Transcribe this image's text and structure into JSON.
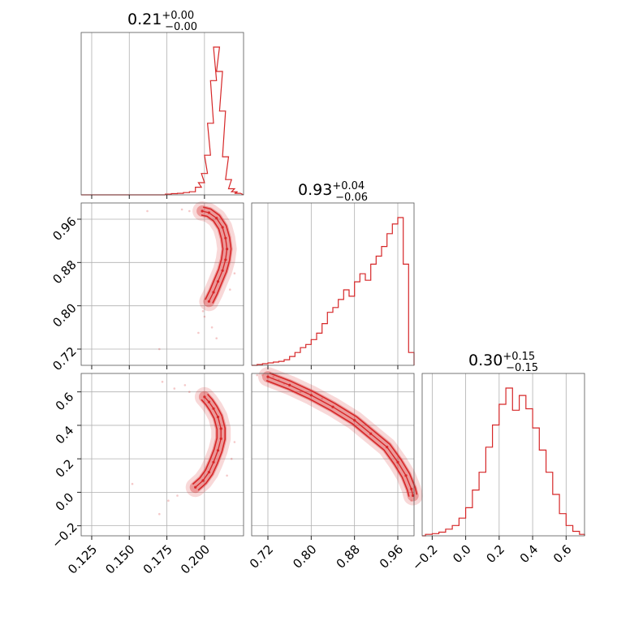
{
  "colors": {
    "accent": "#d62728",
    "grid": "#b0b0b0",
    "frame": "#555555"
  },
  "chart_data": {
    "type": "corner",
    "parameters": [
      {
        "title": {
          "value": "0.21",
          "upper": "+0.00",
          "lower": "−0.00"
        },
        "range": [
          0.118,
          0.226
        ]
      },
      {
        "title": {
          "value": "0.93",
          "upper": "+0.04",
          "lower": "−0.06"
        },
        "range": [
          0.69,
          0.99
        ]
      },
      {
        "title": {
          "value": "0.30",
          "upper": "+0.15",
          "lower": "−0.15"
        },
        "range": [
          -0.26,
          0.71
        ]
      }
    ],
    "ticks": {
      "p1": [
        {
          "value": 0.125,
          "label": "0.125"
        },
        {
          "value": 0.15,
          "label": "0.150"
        },
        {
          "value": 0.175,
          "label": "0.175"
        },
        {
          "value": 0.2,
          "label": "0.200"
        }
      ],
      "p2": [
        {
          "value": 0.72,
          "label": "0.72"
        },
        {
          "value": 0.8,
          "label": "0.80"
        },
        {
          "value": 0.88,
          "label": "0.88"
        },
        {
          "value": 0.96,
          "label": "0.96"
        }
      ],
      "p3": [
        {
          "value": -0.2,
          "label": "−0.2"
        },
        {
          "value": 0.0,
          "label": "0.0"
        },
        {
          "value": 0.2,
          "label": "0.2"
        },
        {
          "value": 0.4,
          "label": "0.4"
        },
        {
          "value": 0.6,
          "label": "0.6"
        }
      ]
    },
    "hist_p1": {
      "x": [
        0.176,
        0.18,
        0.184,
        0.188,
        0.192,
        0.196,
        0.198,
        0.2,
        0.202,
        0.204,
        0.206,
        0.208,
        0.21,
        0.212,
        0.214,
        0.216,
        0.218,
        0.22,
        0.222
      ],
      "values": [
        0.005,
        0.008,
        0.01,
        0.015,
        0.02,
        0.05,
        0.08,
        0.14,
        0.26,
        0.47,
        0.75,
        0.97,
        0.81,
        0.55,
        0.25,
        0.1,
        0.04,
        0.02,
        0.01
      ]
    },
    "hist_p2": {
      "x": [
        0.705,
        0.715,
        0.725,
        0.735,
        0.745,
        0.755,
        0.765,
        0.775,
        0.785,
        0.795,
        0.805,
        0.815,
        0.825,
        0.835,
        0.845,
        0.855,
        0.865,
        0.875,
        0.885,
        0.895,
        0.905,
        0.915,
        0.925,
        0.935,
        0.945,
        0.955,
        0.965,
        0.975,
        0.985
      ],
      "values": [
        0.005,
        0.01,
        0.015,
        0.02,
        0.025,
        0.035,
        0.055,
        0.08,
        0.11,
        0.13,
        0.16,
        0.2,
        0.26,
        0.33,
        0.36,
        0.41,
        0.47,
        0.43,
        0.52,
        0.57,
        0.53,
        0.63,
        0.68,
        0.74,
        0.82,
        0.88,
        0.92,
        0.63,
        0.08
      ]
    },
    "hist_p3": {
      "x": [
        -0.22,
        -0.18,
        -0.14,
        -0.1,
        -0.06,
        -0.02,
        0.02,
        0.06,
        0.1,
        0.14,
        0.18,
        0.22,
        0.26,
        0.3,
        0.34,
        0.38,
        0.42,
        0.46,
        0.5,
        0.54,
        0.58,
        0.62,
        0.66,
        0.7
      ],
      "values": [
        0.01,
        0.015,
        0.025,
        0.045,
        0.07,
        0.12,
        0.19,
        0.31,
        0.43,
        0.6,
        0.75,
        0.89,
        1.0,
        0.85,
        0.95,
        0.86,
        0.73,
        0.58,
        0.43,
        0.28,
        0.15,
        0.07,
        0.03,
        0.01
      ]
    },
    "ridge_p1_p2": {
      "points": [
        {
          "x": 0.1985,
          "y": 0.975
        },
        {
          "x": 0.203,
          "y": 0.972
        },
        {
          "x": 0.208,
          "y": 0.962
        },
        {
          "x": 0.212,
          "y": 0.945
        },
        {
          "x": 0.214,
          "y": 0.925
        },
        {
          "x": 0.215,
          "y": 0.905
        },
        {
          "x": 0.214,
          "y": 0.885
        },
        {
          "x": 0.212,
          "y": 0.865
        },
        {
          "x": 0.209,
          "y": 0.845
        },
        {
          "x": 0.206,
          "y": 0.825
        },
        {
          "x": 0.203,
          "y": 0.808
        }
      ],
      "outliers": [
        {
          "x": 0.19,
          "y": 0.975
        },
        {
          "x": 0.185,
          "y": 0.978
        },
        {
          "x": 0.2,
          "y": 0.78
        },
        {
          "x": 0.205,
          "y": 0.76
        },
        {
          "x": 0.196,
          "y": 0.75
        },
        {
          "x": 0.17,
          "y": 0.72
        },
        {
          "x": 0.22,
          "y": 0.86
        },
        {
          "x": 0.217,
          "y": 0.83
        },
        {
          "x": 0.199,
          "y": 0.79
        },
        {
          "x": 0.208,
          "y": 0.74
        },
        {
          "x": 0.162,
          "y": 0.975
        }
      ]
    },
    "ridge_p1_p3": {
      "points": [
        {
          "x": 0.194,
          "y": 0.03
        },
        {
          "x": 0.199,
          "y": 0.07
        },
        {
          "x": 0.203,
          "y": 0.12
        },
        {
          "x": 0.206,
          "y": 0.18
        },
        {
          "x": 0.209,
          "y": 0.25
        },
        {
          "x": 0.211,
          "y": 0.32
        },
        {
          "x": 0.211,
          "y": 0.38
        },
        {
          "x": 0.209,
          "y": 0.45
        },
        {
          "x": 0.206,
          "y": 0.5
        },
        {
          "x": 0.203,
          "y": 0.54
        },
        {
          "x": 0.2,
          "y": 0.57
        }
      ],
      "outliers": [
        {
          "x": 0.18,
          "y": 0.62
        },
        {
          "x": 0.172,
          "y": 0.66
        },
        {
          "x": 0.187,
          "y": 0.64
        },
        {
          "x": 0.176,
          "y": -0.05
        },
        {
          "x": 0.182,
          "y": -0.02
        },
        {
          "x": 0.17,
          "y": -0.13
        },
        {
          "x": 0.22,
          "y": 0.3
        },
        {
          "x": 0.218,
          "y": 0.2
        },
        {
          "x": 0.152,
          "y": 0.05
        },
        {
          "x": 0.19,
          "y": 0.6
        },
        {
          "x": 0.215,
          "y": 0.1
        }
      ]
    },
    "ridge_p2_p3": {
      "points": [
        {
          "x": 0.72,
          "y": 0.69
        },
        {
          "x": 0.76,
          "y": 0.64
        },
        {
          "x": 0.8,
          "y": 0.58
        },
        {
          "x": 0.84,
          "y": 0.51
        },
        {
          "x": 0.88,
          "y": 0.43
        },
        {
          "x": 0.91,
          "y": 0.35
        },
        {
          "x": 0.94,
          "y": 0.27
        },
        {
          "x": 0.96,
          "y": 0.18
        },
        {
          "x": 0.975,
          "y": 0.1
        },
        {
          "x": 0.985,
          "y": 0.02
        },
        {
          "x": 0.988,
          "y": -0.02
        }
      ],
      "outliers": [
        {
          "x": 0.7,
          "y": 0.7
        },
        {
          "x": 0.74,
          "y": 0.67
        },
        {
          "x": 0.78,
          "y": 0.6
        },
        {
          "x": 0.73,
          "y": 0.69
        },
        {
          "x": 0.985,
          "y": -0.05
        },
        {
          "x": 0.82,
          "y": 0.56
        },
        {
          "x": 0.75,
          "y": 0.65
        },
        {
          "x": 0.71,
          "y": 0.7
        }
      ]
    }
  }
}
